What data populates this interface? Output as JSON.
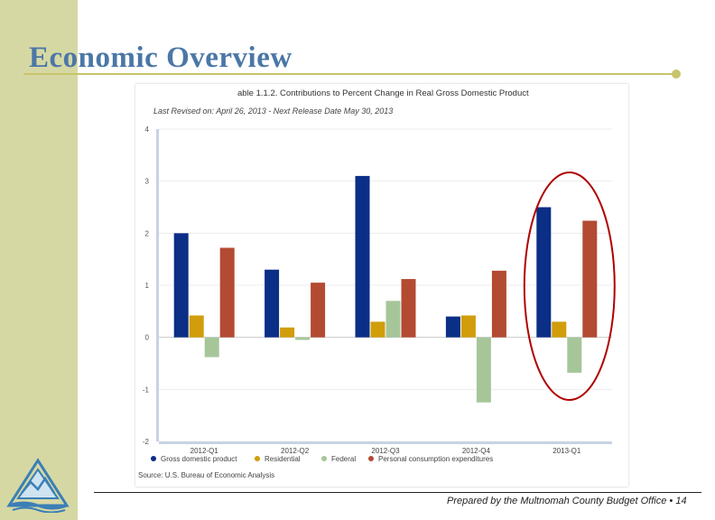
{
  "slide": {
    "title": "Economic Overview",
    "footer": "Prepared by the Multnomah County Budget Office • 14"
  },
  "chart_data": {
    "type": "bar",
    "title": "able 1.1.2. Contributions to Percent Change in Real Gross Domestic Product",
    "subtitle": "Last Revised on: April 26, 2013 - Next Release Date May 30, 2013",
    "source": "Source: U.S. Bureau of Economic Analysis",
    "ylim": [
      -2,
      4
    ],
    "yticks": [
      4,
      3,
      2,
      1,
      0,
      -1,
      -2
    ],
    "categories": [
      "2012-Q1",
      "2012-Q2",
      "2012-Q3",
      "2012-Q4",
      "2013-Q1"
    ],
    "series": [
      {
        "name": "Gross domestic product",
        "color": "#0b2e86",
        "values": [
          2.0,
          1.3,
          3.1,
          0.4,
          2.5
        ]
      },
      {
        "name": "Residential",
        "color": "#d19d0a",
        "values": [
          0.42,
          0.19,
          0.3,
          0.42,
          0.3
        ]
      },
      {
        "name": "Federal",
        "color": "#a6c69a",
        "values": [
          -0.38,
          -0.05,
          0.7,
          -1.25,
          -0.68
        ]
      },
      {
        "name": "Personal consumption expenditures",
        "color": "#b34a32",
        "values": [
          1.72,
          1.05,
          1.12,
          1.28,
          2.24
        ]
      }
    ],
    "highlight_category": "2013-Q1"
  }
}
